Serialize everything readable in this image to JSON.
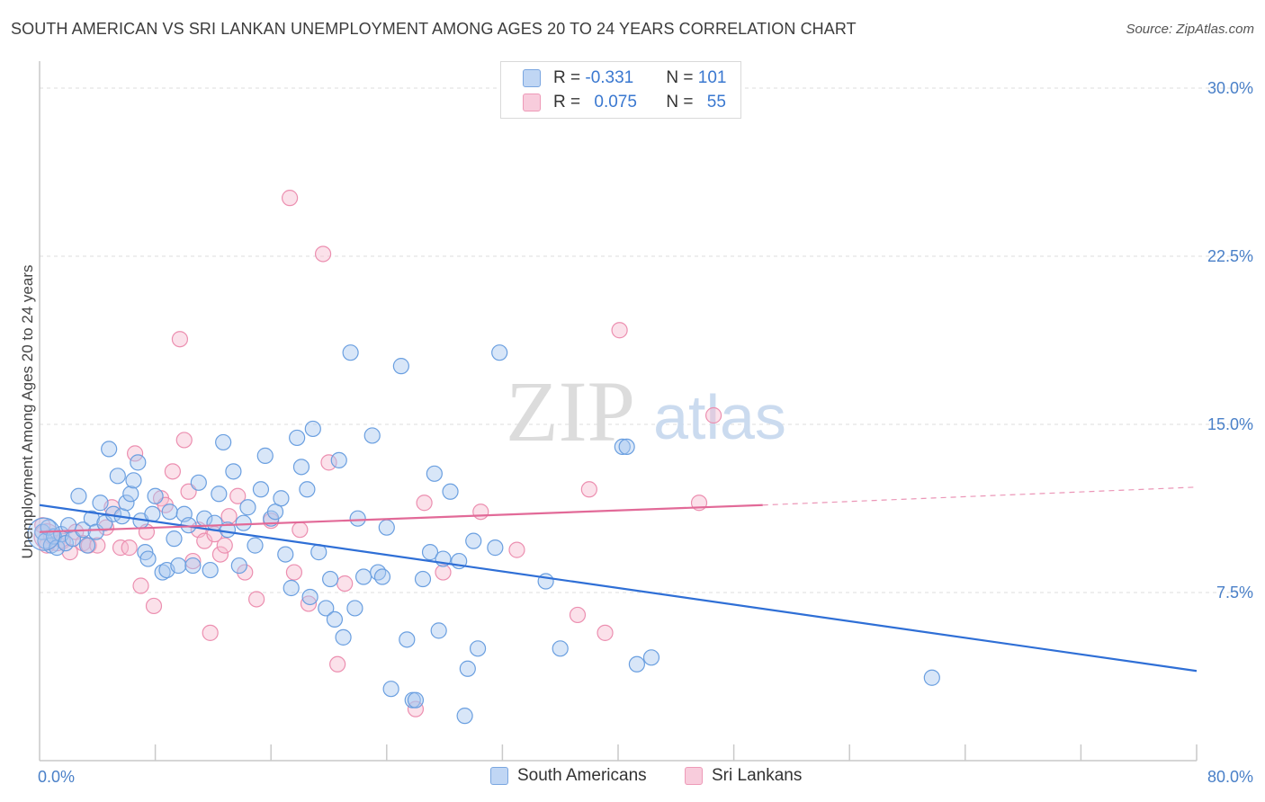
{
  "title": "SOUTH AMERICAN VS SRI LANKAN UNEMPLOYMENT AMONG AGES 20 TO 24 YEARS CORRELATION CHART",
  "source": "Source: ZipAtlas.com",
  "watermark": {
    "zip": "ZIP",
    "atlas": "atlas"
  },
  "legend": {
    "rows": [
      {
        "r_label": "R = ",
        "r_value": "-0.331",
        "n_label": "N = ",
        "n_value": "101"
      },
      {
        "r_label": "R = ",
        "r_value": "0.075",
        "n_label": "N = ",
        "n_value": "55"
      }
    ]
  },
  "colors": {
    "blue_fill": "#a9c8f0",
    "blue_stroke": "#6a9fe0",
    "blue_line": "#2f6fd6",
    "pink_fill": "#f6bcd0",
    "pink_stroke": "#ec8fb0",
    "pink_line": "#e26a98",
    "grid": "#dcdcdc",
    "tick_text": "#4a80c8"
  },
  "chart_data": {
    "type": "scatter",
    "xlabel": "",
    "ylabel": "Unemployment Among Ages 20 to 24 years",
    "xlim": [
      0,
      80
    ],
    "ylim": [
      0,
      30
    ],
    "x_tick_labels": [
      "0.0%",
      "80.0%"
    ],
    "y_ticks": [
      7.5,
      15.0,
      22.5,
      30.0
    ],
    "y_tick_labels": [
      "7.5%",
      "15.0%",
      "22.5%",
      "30.0%"
    ],
    "grid": true,
    "series": [
      {
        "name": "South Americans",
        "trend": {
          "x0": 0,
          "y0": 11.4,
          "x1": 80,
          "y1": 4.0
        },
        "points": [
          [
            0.2,
            10.2
          ],
          [
            0.4,
            9.8
          ],
          [
            0.6,
            10.4
          ],
          [
            0.8,
            9.6
          ],
          [
            1.0,
            10.0
          ],
          [
            1.2,
            9.5
          ],
          [
            1.5,
            10.1
          ],
          [
            1.8,
            9.7
          ],
          [
            2.0,
            10.5
          ],
          [
            2.3,
            9.9
          ],
          [
            2.7,
            11.8
          ],
          [
            3.0,
            10.3
          ],
          [
            3.3,
            9.6
          ],
          [
            3.6,
            10.8
          ],
          [
            3.9,
            10.2
          ],
          [
            4.2,
            11.5
          ],
          [
            4.5,
            10.6
          ],
          [
            4.8,
            13.9
          ],
          [
            5.1,
            11.0
          ],
          [
            5.4,
            12.7
          ],
          [
            5.7,
            10.9
          ],
          [
            6.0,
            11.5
          ],
          [
            6.3,
            11.9
          ],
          [
            6.5,
            12.5
          ],
          [
            6.8,
            13.3
          ],
          [
            7.0,
            10.7
          ],
          [
            7.3,
            9.3
          ],
          [
            7.5,
            9.0
          ],
          [
            7.8,
            11.0
          ],
          [
            8.0,
            11.8
          ],
          [
            8.5,
            8.4
          ],
          [
            8.8,
            8.5
          ],
          [
            9.0,
            11.1
          ],
          [
            9.3,
            9.9
          ],
          [
            9.6,
            8.7
          ],
          [
            10.0,
            11.0
          ],
          [
            10.3,
            10.5
          ],
          [
            10.6,
            8.7
          ],
          [
            11.0,
            12.4
          ],
          [
            11.4,
            10.8
          ],
          [
            11.8,
            8.5
          ],
          [
            12.1,
            10.6
          ],
          [
            12.4,
            11.9
          ],
          [
            12.7,
            14.2
          ],
          [
            13.0,
            10.3
          ],
          [
            13.4,
            12.9
          ],
          [
            13.8,
            8.7
          ],
          [
            14.1,
            10.6
          ],
          [
            14.4,
            11.3
          ],
          [
            14.9,
            9.6
          ],
          [
            15.3,
            12.1
          ],
          [
            15.6,
            13.6
          ],
          [
            16.0,
            10.8
          ],
          [
            16.3,
            11.1
          ],
          [
            16.7,
            11.7
          ],
          [
            17.0,
            9.2
          ],
          [
            17.4,
            7.7
          ],
          [
            17.8,
            14.4
          ],
          [
            18.1,
            13.1
          ],
          [
            18.5,
            12.1
          ],
          [
            18.7,
            7.3
          ],
          [
            18.9,
            14.8
          ],
          [
            19.3,
            9.3
          ],
          [
            19.8,
            6.8
          ],
          [
            20.1,
            8.1
          ],
          [
            20.4,
            6.3
          ],
          [
            20.7,
            13.4
          ],
          [
            21.0,
            5.5
          ],
          [
            21.5,
            18.2
          ],
          [
            21.8,
            6.8
          ],
          [
            22.0,
            10.8
          ],
          [
            22.4,
            8.2
          ],
          [
            23.0,
            14.5
          ],
          [
            23.4,
            8.4
          ],
          [
            23.7,
            8.2
          ],
          [
            24.0,
            10.4
          ],
          [
            24.3,
            3.2
          ],
          [
            25.0,
            17.6
          ],
          [
            25.4,
            5.4
          ],
          [
            25.8,
            2.7
          ],
          [
            26.0,
            2.7
          ],
          [
            26.5,
            8.1
          ],
          [
            27.0,
            9.3
          ],
          [
            27.3,
            12.8
          ],
          [
            27.6,
            5.8
          ],
          [
            27.9,
            9.0
          ],
          [
            28.4,
            12.0
          ],
          [
            29.0,
            8.9
          ],
          [
            29.6,
            4.1
          ],
          [
            30.0,
            9.8
          ],
          [
            30.3,
            5.0
          ],
          [
            31.5,
            9.5
          ],
          [
            31.8,
            18.2
          ],
          [
            29.4,
            2.0
          ],
          [
            35.0,
            8.0
          ],
          [
            36.0,
            5.0
          ],
          [
            40.3,
            14.0
          ],
          [
            40.6,
            14.0
          ],
          [
            41.3,
            4.3
          ],
          [
            42.3,
            4.6
          ],
          [
            61.7,
            3.7
          ]
        ]
      },
      {
        "name": "Sri Lankans",
        "trend": {
          "x0": 0,
          "y0": 10.2,
          "x1": 50,
          "y1": 11.4,
          "dash_to_x": 80,
          "dash_to_y": 12.2
        },
        "points": [
          [
            0.2,
            10.5
          ],
          [
            0.5,
            9.6
          ],
          [
            0.8,
            10.0
          ],
          [
            1.2,
            9.7
          ],
          [
            1.6,
            9.8
          ],
          [
            2.1,
            9.3
          ],
          [
            2.5,
            10.2
          ],
          [
            3.0,
            9.7
          ],
          [
            3.4,
            9.6
          ],
          [
            4.0,
            9.6
          ],
          [
            4.6,
            10.4
          ],
          [
            5.0,
            11.3
          ],
          [
            5.6,
            9.5
          ],
          [
            6.2,
            9.5
          ],
          [
            6.6,
            13.7
          ],
          [
            7.0,
            7.8
          ],
          [
            7.4,
            10.2
          ],
          [
            7.9,
            6.9
          ],
          [
            8.4,
            11.7
          ],
          [
            8.7,
            11.4
          ],
          [
            9.2,
            12.9
          ],
          [
            9.7,
            18.8
          ],
          [
            10.0,
            14.3
          ],
          [
            10.3,
            12.0
          ],
          [
            10.6,
            8.9
          ],
          [
            11.0,
            10.3
          ],
          [
            11.4,
            9.8
          ],
          [
            11.8,
            5.7
          ],
          [
            12.1,
            10.1
          ],
          [
            12.5,
            9.2
          ],
          [
            12.8,
            9.6
          ],
          [
            13.1,
            10.9
          ],
          [
            13.7,
            11.8
          ],
          [
            14.2,
            8.4
          ],
          [
            15.0,
            7.2
          ],
          [
            16.0,
            10.7
          ],
          [
            17.3,
            25.1
          ],
          [
            17.6,
            8.4
          ],
          [
            18.0,
            10.3
          ],
          [
            18.6,
            7.0
          ],
          [
            19.6,
            22.6
          ],
          [
            20.0,
            13.3
          ],
          [
            20.6,
            4.3
          ],
          [
            21.1,
            7.9
          ],
          [
            26.0,
            2.3
          ],
          [
            26.6,
            11.5
          ],
          [
            27.9,
            8.4
          ],
          [
            30.5,
            11.1
          ],
          [
            33.0,
            9.4
          ],
          [
            38.0,
            12.1
          ],
          [
            37.2,
            6.5
          ],
          [
            39.1,
            5.7
          ],
          [
            40.1,
            19.2
          ],
          [
            45.6,
            11.5
          ],
          [
            46.6,
            15.4
          ]
        ]
      }
    ]
  }
}
